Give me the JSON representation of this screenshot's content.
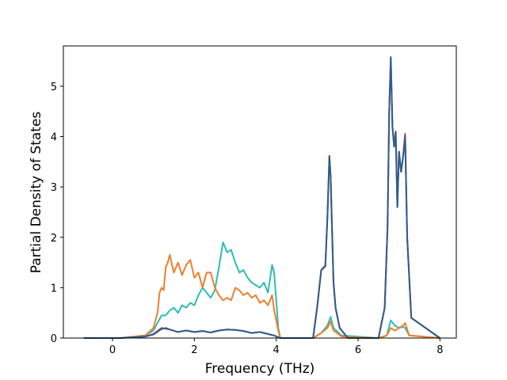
{
  "chart_data": {
    "type": "line",
    "title": "",
    "xlabel": "Frequency (THz)",
    "ylabel": "Partial Density of States",
    "xlim": [
      -1.2,
      8.4
    ],
    "ylim": [
      0,
      5.8
    ],
    "xticks": [
      0,
      2,
      4,
      6,
      8
    ],
    "xtick_labels": [
      "0",
      "2",
      "4",
      "6",
      "8"
    ],
    "yticks": [
      0,
      1,
      2,
      3,
      4,
      5
    ],
    "ytick_labels": [
      "0",
      "1",
      "2",
      "3",
      "4",
      "5"
    ],
    "grid": false,
    "legend": "none",
    "series": [
      {
        "color": "#d62728",
        "x": [
          -0.7,
          0.2,
          0.8,
          1.0,
          1.2,
          1.4,
          1.6,
          1.8,
          2.0,
          2.2,
          2.4,
          2.6,
          2.8,
          3.0,
          3.2,
          3.4,
          3.6,
          3.8,
          3.95,
          4.1,
          4.9,
          5.0,
          5.1,
          5.15,
          5.2,
          5.25,
          5.3,
          5.33,
          5.36,
          5.4,
          5.45,
          5.55,
          5.75,
          6.5,
          6.65,
          6.72,
          6.76,
          6.8,
          6.84,
          6.88,
          6.92,
          6.96,
          7.0,
          7.05,
          7.1,
          7.15,
          7.2,
          7.3,
          8.0
        ],
        "y": [
          0,
          0,
          0.03,
          0.08,
          0.2,
          0.17,
          0.12,
          0.15,
          0.12,
          0.14,
          0.11,
          0.15,
          0.17,
          0.16,
          0.14,
          0.1,
          0.12,
          0.08,
          0.05,
          0,
          0,
          0.6,
          1.35,
          1.38,
          1.45,
          2.4,
          3.62,
          3.2,
          2.3,
          1.1,
          0.6,
          0.2,
          0,
          0,
          0.6,
          2.2,
          4.5,
          5.55,
          4.2,
          3.8,
          4.1,
          2.6,
          3.7,
          3.3,
          3.6,
          4.05,
          2.0,
          0.4,
          0
        ]
      },
      {
        "color": "#2ebcb4",
        "x": [
          -0.7,
          0.2,
          0.8,
          1.0,
          1.1,
          1.2,
          1.3,
          1.4,
          1.5,
          1.6,
          1.7,
          1.8,
          1.9,
          2.0,
          2.1,
          2.2,
          2.3,
          2.4,
          2.5,
          2.6,
          2.7,
          2.8,
          2.9,
          3.0,
          3.1,
          3.2,
          3.3,
          3.4,
          3.5,
          3.6,
          3.7,
          3.8,
          3.9,
          3.95,
          4.05,
          4.1,
          4.9,
          5.1,
          5.25,
          5.33,
          5.4,
          5.6,
          6.5,
          6.7,
          6.8,
          6.9,
          7.0,
          7.1,
          7.15,
          7.25,
          8.0
        ],
        "y": [
          0,
          0,
          0.05,
          0.15,
          0.3,
          0.45,
          0.45,
          0.55,
          0.6,
          0.5,
          0.65,
          0.6,
          0.7,
          0.65,
          0.85,
          1.0,
          0.9,
          0.8,
          0.95,
          1.4,
          1.9,
          1.7,
          1.75,
          1.5,
          1.3,
          1.35,
          1.2,
          1.1,
          1.05,
          1.0,
          1.1,
          0.9,
          1.45,
          1.3,
          0.2,
          0,
          0,
          0.1,
          0.25,
          0.42,
          0.2,
          0.05,
          0,
          0.05,
          0.35,
          0.25,
          0.2,
          0.22,
          0.2,
          0.05,
          0
        ]
      },
      {
        "color": "#ee7f2d",
        "x": [
          -0.7,
          0.2,
          0.8,
          1.0,
          1.1,
          1.15,
          1.2,
          1.25,
          1.3,
          1.35,
          1.4,
          1.5,
          1.6,
          1.7,
          1.8,
          1.9,
          2.0,
          2.1,
          2.2,
          2.3,
          2.4,
          2.5,
          2.6,
          2.7,
          2.8,
          2.9,
          3.0,
          3.1,
          3.2,
          3.3,
          3.4,
          3.5,
          3.6,
          3.7,
          3.8,
          3.9,
          3.95,
          4.05,
          4.1,
          4.9,
          5.1,
          5.25,
          5.33,
          5.4,
          5.6,
          6.5,
          6.7,
          6.8,
          6.9,
          7.0,
          7.1,
          7.15,
          7.25,
          8.0
        ],
        "y": [
          0,
          0,
          0.05,
          0.2,
          0.5,
          0.9,
          1.0,
          0.95,
          1.4,
          1.5,
          1.65,
          1.3,
          1.5,
          1.25,
          1.45,
          1.55,
          1.2,
          1.3,
          1.0,
          1.3,
          1.3,
          1.0,
          0.85,
          0.75,
          0.8,
          0.75,
          1.0,
          0.95,
          0.85,
          0.9,
          0.8,
          0.85,
          0.7,
          0.75,
          0.65,
          0.85,
          0.55,
          0.15,
          0,
          0,
          0.1,
          0.2,
          0.33,
          0.15,
          0.03,
          0,
          0.05,
          0.2,
          0.15,
          0.2,
          0.25,
          0.3,
          0.05,
          0
        ]
      },
      {
        "color": "#2c5f8e",
        "x": [
          -0.7,
          0.2,
          0.8,
          1.0,
          1.2,
          1.3,
          1.4,
          1.6,
          1.8,
          2.0,
          2.2,
          2.4,
          2.6,
          2.8,
          3.0,
          3.2,
          3.4,
          3.6,
          3.8,
          3.95,
          4.1,
          4.9,
          5.0,
          5.1,
          5.15,
          5.2,
          5.25,
          5.3,
          5.33,
          5.36,
          5.4,
          5.45,
          5.55,
          5.75,
          6.5,
          6.65,
          6.72,
          6.76,
          6.8,
          6.84,
          6.88,
          6.92,
          6.96,
          7.0,
          7.05,
          7.1,
          7.15,
          7.2,
          7.3,
          8.0
        ],
        "y": [
          0,
          0,
          0.03,
          0.07,
          0.18,
          0.2,
          0.17,
          0.12,
          0.15,
          0.12,
          0.14,
          0.11,
          0.15,
          0.17,
          0.16,
          0.14,
          0.1,
          0.12,
          0.08,
          0.05,
          0,
          0,
          0.6,
          1.35,
          1.4,
          1.42,
          2.4,
          3.6,
          3.2,
          2.3,
          1.1,
          0.6,
          0.2,
          0,
          0,
          0.6,
          2.2,
          4.5,
          5.58,
          4.2,
          3.8,
          4.1,
          2.6,
          3.7,
          3.3,
          3.6,
          4.0,
          2.0,
          0.4,
          0
        ]
      }
    ]
  }
}
